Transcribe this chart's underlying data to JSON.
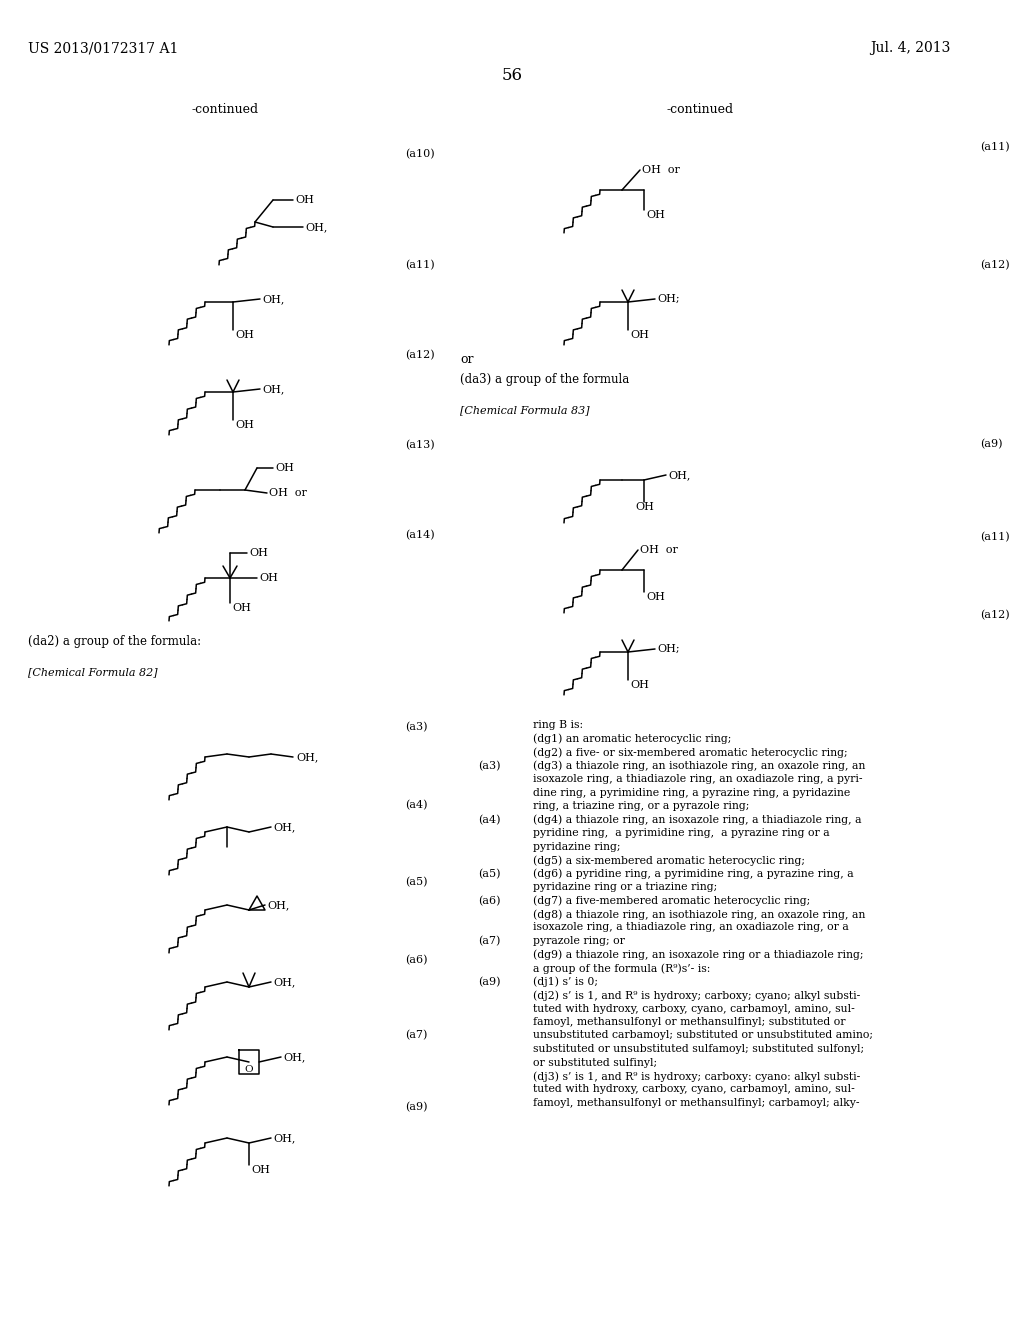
{
  "page_header_left": "US 2013/0172317 A1",
  "page_header_right": "Jul. 4, 2013",
  "page_number": "56",
  "background_color": "#ffffff"
}
